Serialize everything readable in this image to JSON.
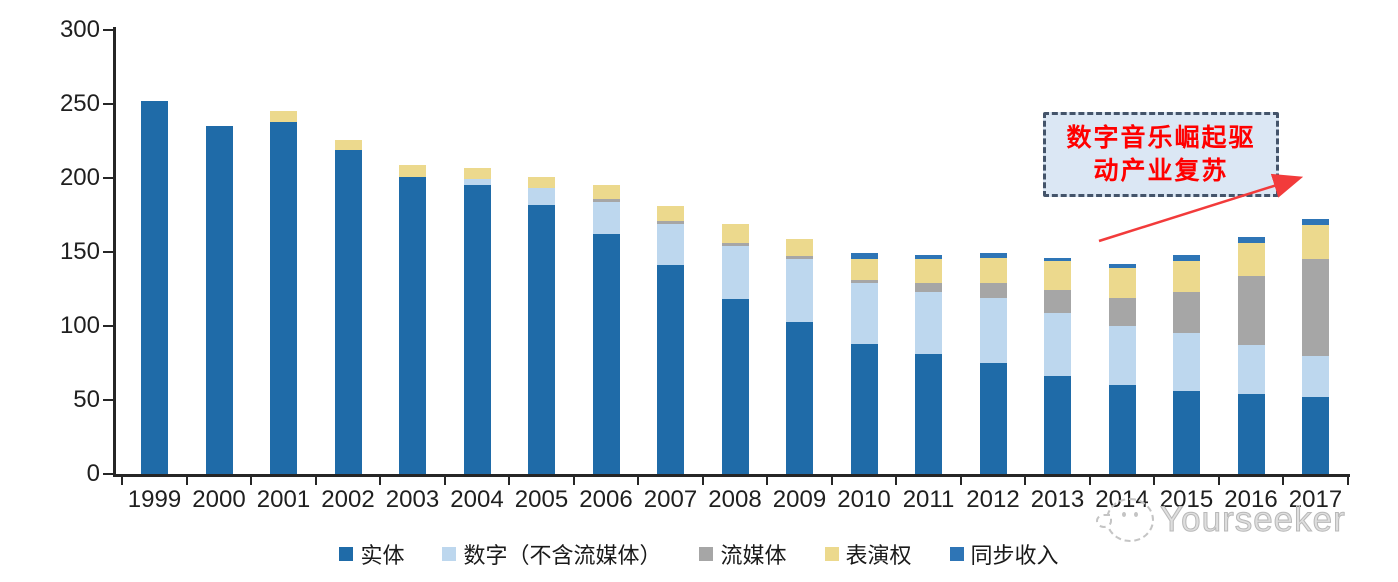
{
  "chart_data": {
    "type": "bar",
    "stacked": true,
    "title": "",
    "xlabel": "",
    "ylabel": "",
    "ylim": [
      0,
      300
    ],
    "yticks": [
      0,
      50,
      100,
      150,
      200,
      250,
      300
    ],
    "grid": false,
    "legend_position": "bottom",
    "categories": [
      "1999",
      "2000",
      "2001",
      "2002",
      "2003",
      "2004",
      "2005",
      "2006",
      "2007",
      "2008",
      "2009",
      "2010",
      "2011",
      "2012",
      "2013",
      "2014",
      "2015",
      "2016",
      "2017"
    ],
    "series": [
      {
        "name": "实体",
        "color": "#1F6BA8",
        "values": [
          252,
          235,
          238,
          219,
          201,
          195,
          182,
          162,
          141,
          118,
          103,
          88,
          81,
          75,
          66,
          60,
          56,
          54,
          52
        ]
      },
      {
        "name": "数字（不含流媒体）",
        "color": "#BDD7EE",
        "values": [
          0,
          0,
          0,
          0,
          0,
          4,
          11,
          22,
          28,
          36,
          42,
          41,
          42,
          44,
          43,
          40,
          39,
          33,
          28
        ]
      },
      {
        "name": "流媒体",
        "color": "#A6A6A6",
        "values": [
          0,
          0,
          0,
          0,
          0,
          0,
          0,
          2,
          2,
          2,
          2,
          2,
          6,
          10,
          15,
          19,
          28,
          47,
          65
        ]
      },
      {
        "name": "表演权",
        "color": "#ECD98D",
        "values": [
          0,
          0,
          7,
          7,
          8,
          8,
          8,
          9,
          10,
          13,
          12,
          14,
          16,
          17,
          20,
          20,
          21,
          22,
          23
        ]
      },
      {
        "name": "同步收入",
        "color": "#2E75B6",
        "values": [
          0,
          0,
          0,
          0,
          0,
          0,
          0,
          0,
          0,
          0,
          0,
          4,
          3,
          3,
          2,
          3,
          4,
          4,
          4
        ]
      }
    ],
    "annotation": {
      "full_text": "数字音乐崛起驱动产业复苏",
      "line1": "数字音乐崛起驱",
      "line2": "动产业复苏"
    }
  },
  "watermark": {
    "text": "Yourseeker"
  },
  "colors": {
    "axis": "#262626",
    "annotation_background": "#DBE7F4",
    "annotation_border": "#44546A",
    "annotation_text": "#FF0000",
    "arrow": "#F23B3B",
    "watermark": "#C4C4C4"
  }
}
